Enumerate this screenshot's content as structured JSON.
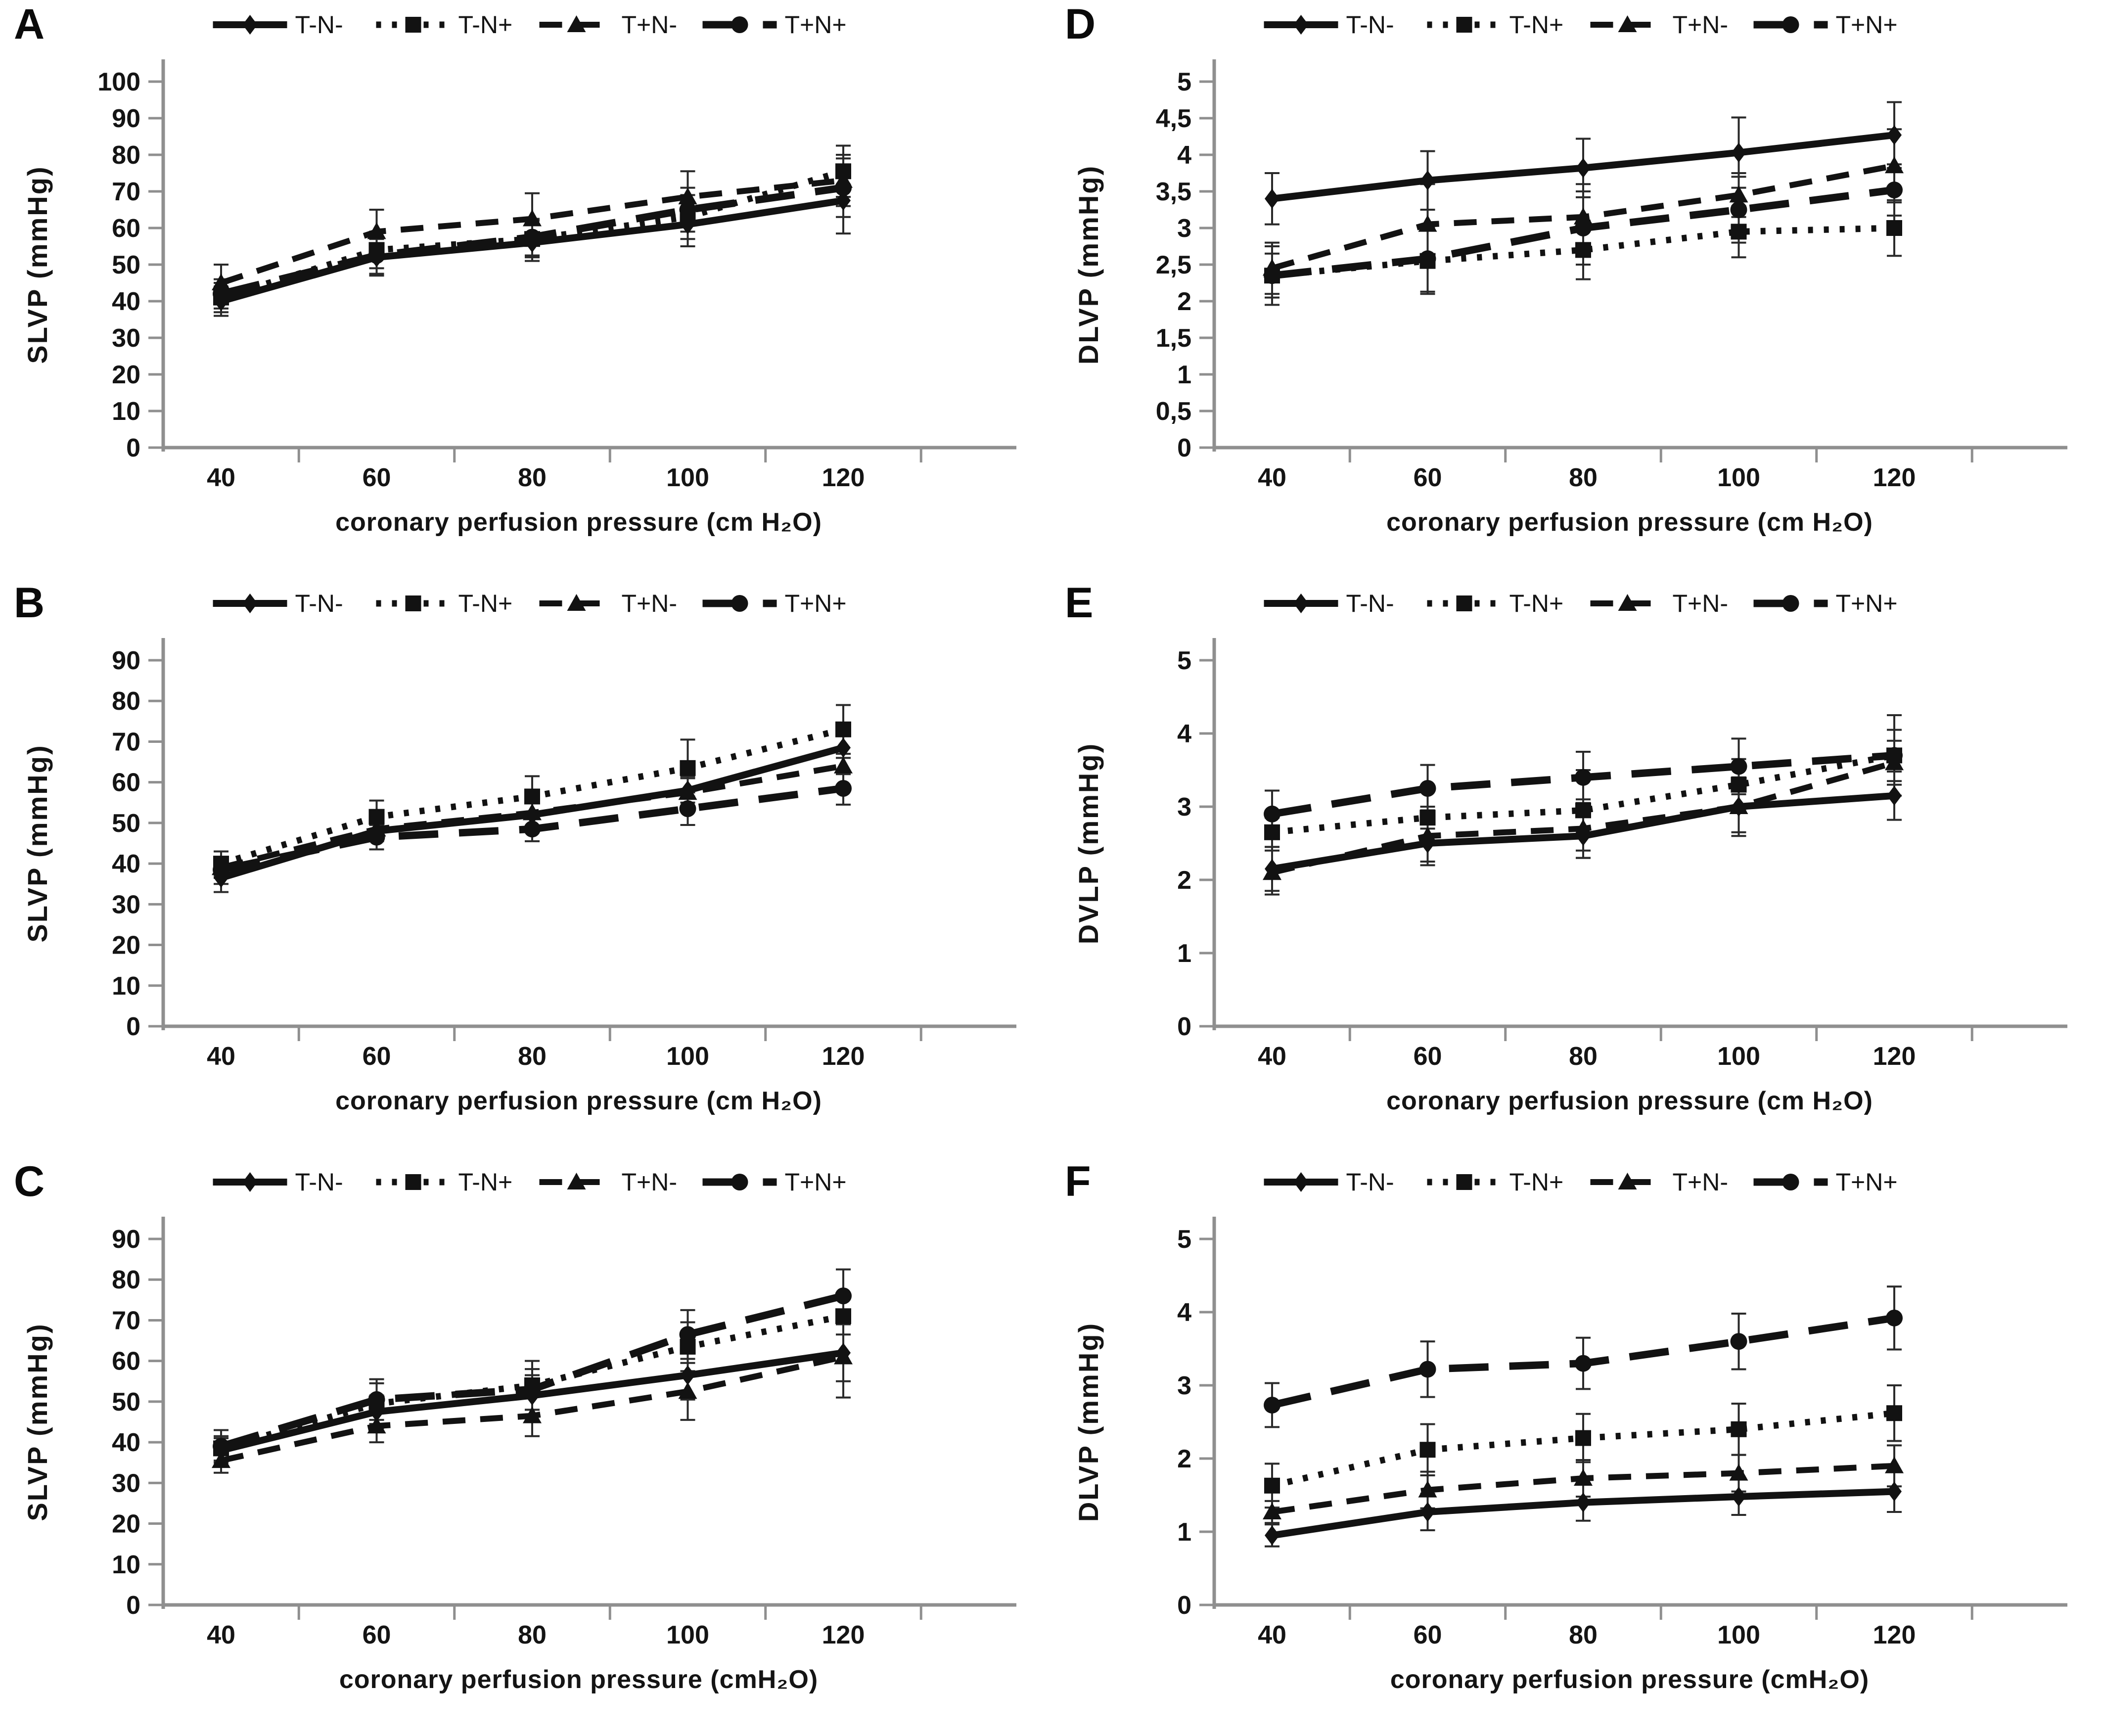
{
  "figure": {
    "description_labels": {
      "x_axis_spaced": "coronary perfusion pressure (cm H₂O)",
      "x_axis_nospace": "coronary perfusion pressure (cmH₂O)"
    }
  },
  "charts": [
    {
      "panel": "A",
      "type": "line",
      "ylabel": "SLVP (mmHg)",
      "xlabel": "coronary perfusion pressure (cm H₂O)",
      "x": [
        "40",
        "60",
        "80",
        "100",
        "120"
      ],
      "ylim": [
        0,
        100
      ],
      "yticks": [
        {
          "v": 0,
          "label": "0"
        },
        {
          "v": 10,
          "label": "10"
        },
        {
          "v": 20,
          "label": "20"
        },
        {
          "v": 30,
          "label": "30"
        },
        {
          "v": 40,
          "label": "40"
        },
        {
          "v": 50,
          "label": "50"
        },
        {
          "v": 60,
          "label": "60"
        },
        {
          "v": 70,
          "label": "70"
        },
        {
          "v": 80,
          "label": "80"
        },
        {
          "v": 90,
          "label": "90"
        },
        {
          "v": 100,
          "label": "100"
        }
      ],
      "series": [
        {
          "name": "T-N-",
          "marker": "diamond",
          "linestyle": "solid",
          "values": [
            40,
            52,
            56,
            61,
            67.5
          ],
          "err": [
            4,
            5,
            5,
            6,
            9
          ]
        },
        {
          "name": "T-N+",
          "marker": "square",
          "linestyle": "dotted",
          "values": [
            41,
            54,
            57,
            63,
            75.5
          ],
          "err": [
            4,
            5,
            5,
            6,
            7
          ]
        },
        {
          "name": "T+N-",
          "marker": "triangle",
          "linestyle": "dashed",
          "values": [
            45,
            59,
            62.5,
            68.5,
            73
          ],
          "err": [
            5,
            6,
            7,
            7,
            7
          ]
        },
        {
          "name": "T+N+",
          "marker": "circle",
          "linestyle": "longdash",
          "values": [
            42,
            52.5,
            57.5,
            65,
            71
          ],
          "err": [
            4,
            5,
            5,
            6,
            8
          ]
        }
      ]
    },
    {
      "panel": "D",
      "type": "line",
      "ylabel": "DLVP (mmHg)",
      "xlabel": "coronary perfusion pressure (cm H₂O)",
      "x": [
        "40",
        "60",
        "80",
        "100",
        "120"
      ],
      "ylim": [
        0,
        5
      ],
      "yticks": [
        {
          "v": 0,
          "label": "0"
        },
        {
          "v": 0.5,
          "label": "0,5"
        },
        {
          "v": 1,
          "label": "1"
        },
        {
          "v": 1.5,
          "label": "1,5"
        },
        {
          "v": 2,
          "label": "2"
        },
        {
          "v": 2.5,
          "label": "2,5"
        },
        {
          "v": 3,
          "label": "3"
        },
        {
          "v": 3.5,
          "label": "3,5"
        },
        {
          "v": 4,
          "label": "4"
        },
        {
          "v": 4.5,
          "label": "4,5"
        },
        {
          "v": 5,
          "label": "5"
        }
      ],
      "series": [
        {
          "name": "T-N-",
          "marker": "diamond",
          "linestyle": "solid",
          "values": [
            3.4,
            3.65,
            3.82,
            4.03,
            4.27
          ],
          "err": [
            0.35,
            0.4,
            0.4,
            0.48,
            0.45
          ]
        },
        {
          "name": "T-N+",
          "marker": "square",
          "linestyle": "dotted",
          "values": [
            2.35,
            2.55,
            2.7,
            2.95,
            3.0
          ],
          "err": [
            0.3,
            0.45,
            0.4,
            0.35,
            0.38
          ]
        },
        {
          "name": "T+N-",
          "marker": "triangle",
          "linestyle": "dashed",
          "values": [
            2.45,
            3.05,
            3.15,
            3.45,
            3.85
          ],
          "err": [
            0.35,
            0.55,
            0.45,
            0.3,
            0.5
          ]
        },
        {
          "name": "T+N+",
          "marker": "circle",
          "linestyle": "longdash",
          "values": [
            2.35,
            2.58,
            3.0,
            3.25,
            3.52
          ],
          "err": [
            0.4,
            0.45,
            0.5,
            0.45,
            0.35
          ]
        }
      ]
    },
    {
      "panel": "B",
      "type": "line",
      "ylabel": "SLVP (mmHg)",
      "xlabel": "coronary perfusion pressure (cm H₂O)",
      "x": [
        "40",
        "60",
        "80",
        "100",
        "120"
      ],
      "ylim": [
        0,
        90
      ],
      "yticks": [
        {
          "v": 0,
          "label": "0"
        },
        {
          "v": 10,
          "label": "10"
        },
        {
          "v": 20,
          "label": "20"
        },
        {
          "v": 30,
          "label": "30"
        },
        {
          "v": 40,
          "label": "40"
        },
        {
          "v": 50,
          "label": "50"
        },
        {
          "v": 60,
          "label": "60"
        },
        {
          "v": 70,
          "label": "70"
        },
        {
          "v": 80,
          "label": "80"
        },
        {
          "v": 90,
          "label": "90"
        }
      ],
      "series": [
        {
          "name": "T-N-",
          "marker": "diamond",
          "linestyle": "solid",
          "values": [
            36.5,
            48,
            52,
            58,
            68.5
          ],
          "err": [
            3.5,
            2,
            3,
            3,
            6
          ]
        },
        {
          "name": "T-N+",
          "marker": "square",
          "linestyle": "dotted",
          "values": [
            40,
            51.5,
            56.5,
            63.5,
            73
          ],
          "err": [
            3,
            4,
            5,
            7,
            6
          ]
        },
        {
          "name": "T+N-",
          "marker": "triangle",
          "linestyle": "dashed",
          "values": [
            39,
            48.5,
            52.5,
            57.5,
            64
          ],
          "err": [
            4,
            3,
            4,
            4,
            2
          ]
        },
        {
          "name": "T+N+",
          "marker": "circle",
          "linestyle": "longdash",
          "values": [
            38.5,
            46.5,
            48.5,
            53.5,
            58.5
          ],
          "err": [
            2,
            3,
            3,
            4,
            4
          ]
        }
      ]
    },
    {
      "panel": "E",
      "type": "line",
      "ylabel": "DVLP (mmHg)",
      "xlabel": "coronary perfusion pressure (cm H₂O)",
      "x": [
        "40",
        "60",
        "80",
        "100",
        "120"
      ],
      "ylim": [
        0,
        5
      ],
      "yticks": [
        {
          "v": 0,
          "label": "0"
        },
        {
          "v": 1,
          "label": "1"
        },
        {
          "v": 2,
          "label": "2"
        },
        {
          "v": 3,
          "label": "3"
        },
        {
          "v": 4,
          "label": "4"
        },
        {
          "v": 5,
          "label": "5"
        }
      ],
      "series": [
        {
          "name": "T-N-",
          "marker": "diamond",
          "linestyle": "solid",
          "values": [
            2.15,
            2.5,
            2.6,
            3.0,
            3.15
          ],
          "err": [
            0.3,
            0.3,
            0.3,
            0.35,
            0.33
          ]
        },
        {
          "name": "T-N+",
          "marker": "square",
          "linestyle": "dotted",
          "values": [
            2.65,
            2.85,
            2.95,
            3.3,
            3.7
          ],
          "err": [
            0.2,
            0.15,
            0.55,
            0.35,
            0.35
          ]
        },
        {
          "name": "T+N-",
          "marker": "triangle",
          "linestyle": "dashed",
          "values": [
            2.1,
            2.6,
            2.7,
            3.0,
            3.6
          ],
          "err": [
            0.3,
            0.35,
            0.4,
            0.4,
            0.3
          ]
        },
        {
          "name": "T+N+",
          "marker": "circle",
          "linestyle": "longdash",
          "values": [
            2.9,
            3.25,
            3.4,
            3.55,
            3.7
          ],
          "err": [
            0.32,
            0.32,
            0.35,
            0.38,
            0.55
          ]
        }
      ]
    },
    {
      "panel": "C",
      "type": "line",
      "ylabel": "SLVP (mmHg)",
      "xlabel": "coronary perfusion pressure (cmH₂O)",
      "x": [
        "40",
        "60",
        "80",
        "100",
        "120"
      ],
      "ylim": [
        0,
        90
      ],
      "yticks": [
        {
          "v": 0,
          "label": "0"
        },
        {
          "v": 10,
          "label": "10"
        },
        {
          "v": 20,
          "label": "20"
        },
        {
          "v": 30,
          "label": "30"
        },
        {
          "v": 40,
          "label": "40"
        },
        {
          "v": 50,
          "label": "50"
        },
        {
          "v": 60,
          "label": "60"
        },
        {
          "v": 70,
          "label": "70"
        },
        {
          "v": 80,
          "label": "80"
        },
        {
          "v": 90,
          "label": "90"
        }
      ],
      "series": [
        {
          "name": "T-N-",
          "marker": "diamond",
          "linestyle": "solid",
          "values": [
            38,
            47.5,
            51.5,
            56.5,
            62
          ],
          "err": [
            3,
            4,
            5,
            6,
            7
          ]
        },
        {
          "name": "T-N+",
          "marker": "square",
          "linestyle": "dotted",
          "values": [
            38.5,
            49.5,
            54,
            63.5,
            71
          ],
          "err": [
            3,
            5,
            6,
            6,
            4.5
          ]
        },
        {
          "name": "T+N-",
          "marker": "triangle",
          "linestyle": "dashed",
          "values": [
            35.5,
            44,
            46.5,
            52.5,
            61
          ],
          "err": [
            3,
            4,
            5,
            7,
            10
          ]
        },
        {
          "name": "T+N+",
          "marker": "circle",
          "linestyle": "longdash",
          "values": [
            39,
            50.5,
            53,
            66.5,
            76
          ],
          "err": [
            4,
            5,
            5,
            6,
            6.5
          ]
        }
      ]
    },
    {
      "panel": "F",
      "type": "line",
      "ylabel": "DLVP (mmHg)",
      "xlabel": "coronary perfusion pressure (cmH₂O)",
      "x": [
        "40",
        "60",
        "80",
        "100",
        "120"
      ],
      "ylim": [
        0,
        5
      ],
      "yticks": [
        {
          "v": 0,
          "label": "0"
        },
        {
          "v": 1,
          "label": "1"
        },
        {
          "v": 2,
          "label": "2"
        },
        {
          "v": 3,
          "label": "3"
        },
        {
          "v": 4,
          "label": "4"
        },
        {
          "v": 5,
          "label": "5"
        }
      ],
      "series": [
        {
          "name": "T-N-",
          "marker": "diamond",
          "linestyle": "solid",
          "values": [
            0.95,
            1.27,
            1.4,
            1.48,
            1.55
          ],
          "err": [
            0.15,
            0.25,
            0.25,
            0.25,
            0.28
          ]
        },
        {
          "name": "T-N+",
          "marker": "square",
          "linestyle": "dotted",
          "values": [
            1.63,
            2.12,
            2.28,
            2.4,
            2.62
          ],
          "err": [
            0.3,
            0.35,
            0.33,
            0.35,
            0.38
          ]
        },
        {
          "name": "T+N-",
          "marker": "triangle",
          "linestyle": "dashed",
          "values": [
            1.27,
            1.57,
            1.73,
            1.8,
            1.9
          ],
          "err": [
            0.15,
            0.25,
            0.25,
            0.25,
            0.28
          ]
        },
        {
          "name": "T+N+",
          "marker": "circle",
          "linestyle": "longdash",
          "values": [
            2.73,
            3.22,
            3.3,
            3.6,
            3.92
          ],
          "err": [
            0.3,
            0.38,
            0.35,
            0.38,
            0.43
          ]
        }
      ]
    }
  ]
}
